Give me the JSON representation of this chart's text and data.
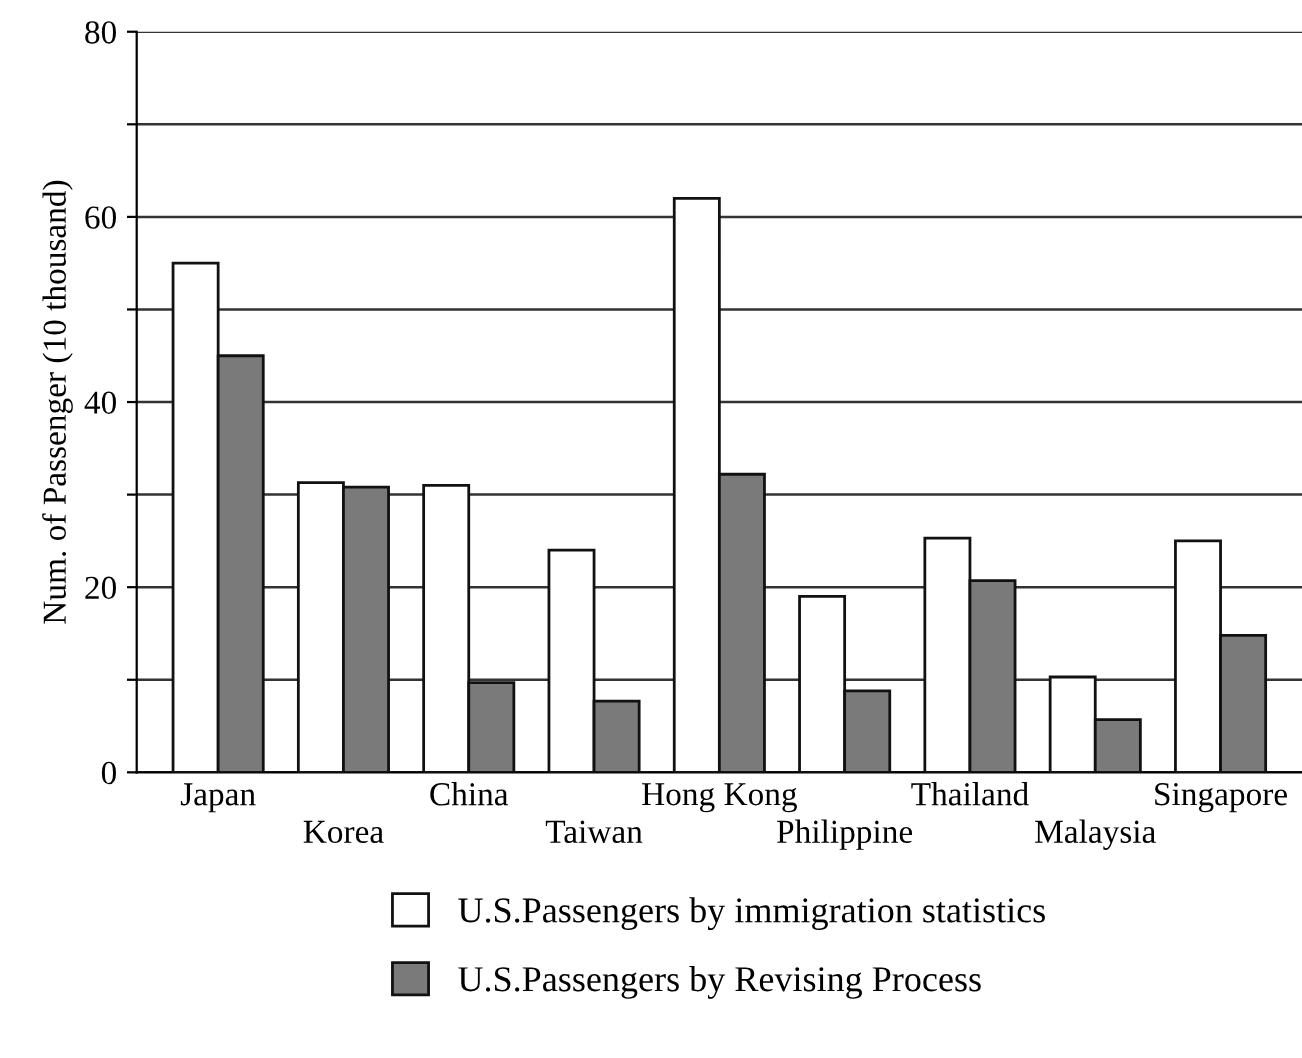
{
  "chart_data": {
    "type": "bar",
    "ylabel": "Num. of Passenger (10 thousand)",
    "categories": [
      "Japan",
      "Korea",
      "China",
      "Taiwan",
      "Hong Kong",
      "Philippine",
      "Thailand",
      "Malaysia",
      "Singapore"
    ],
    "series": [
      {
        "name": "U.S.Passengers by immigration statistics",
        "color": "#ffffff",
        "values": [
          55,
          31.3,
          31,
          24,
          62,
          19,
          25.3,
          10.3,
          25
        ]
      },
      {
        "name": "U.S.Passengers by Revising Process",
        "color": "#7a7a7a",
        "values": [
          45,
          30.8,
          9.7,
          7.7,
          32.2,
          8.8,
          20.7,
          5.7,
          14.8
        ]
      }
    ],
    "ylim": [
      0,
      80
    ],
    "yticks": [
      0,
      {
        "value": 10,
        "label": null
      },
      20,
      {
        "value": 30,
        "label": null
      },
      40,
      {
        "value": 50,
        "label": null
      },
      60,
      {
        "value": 70,
        "label": null
      },
      80
    ],
    "grid": "y",
    "legend": "bottom"
  }
}
